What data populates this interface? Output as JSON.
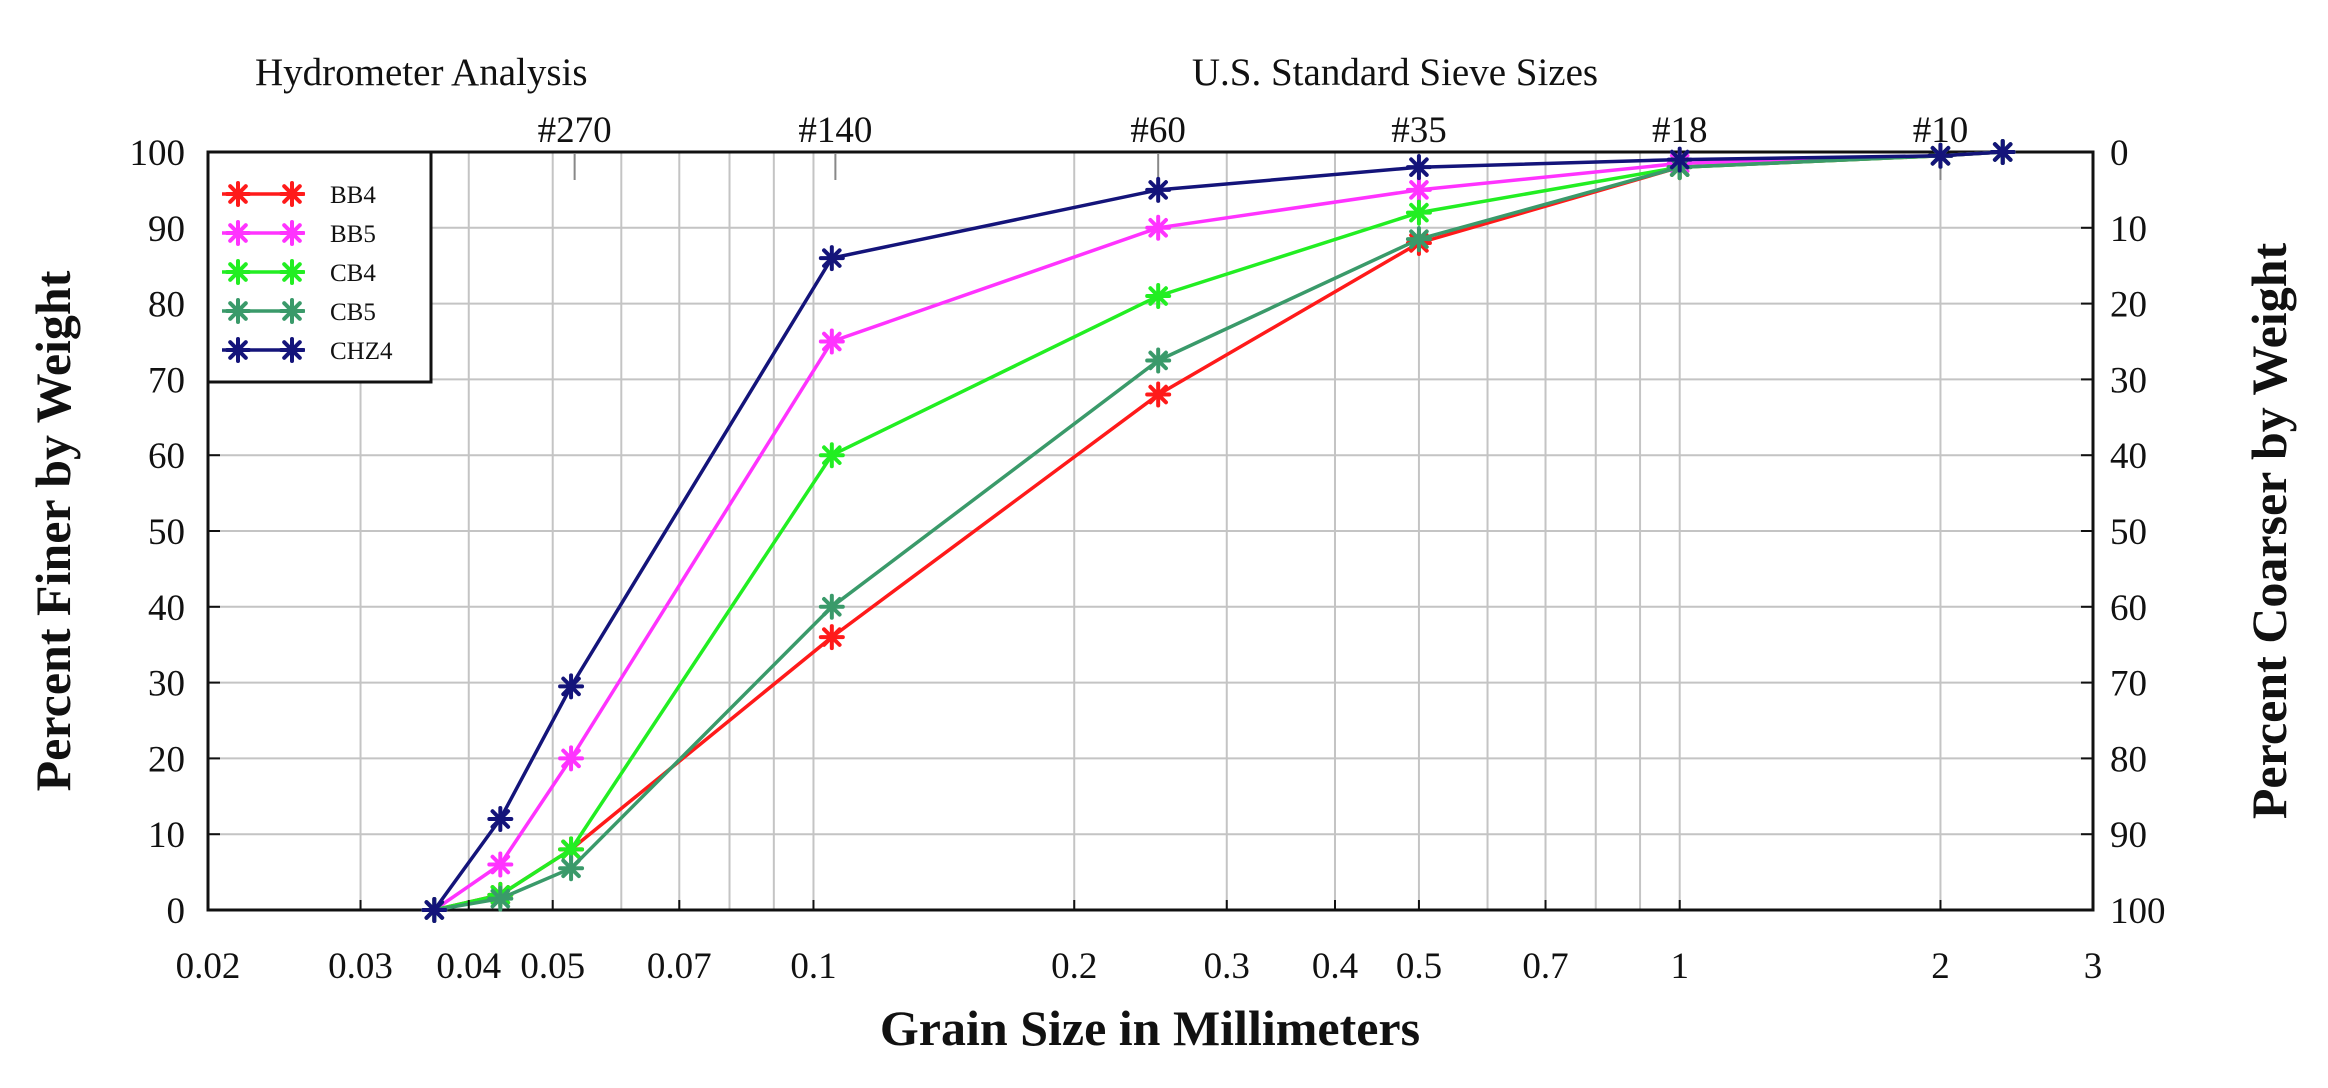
{
  "chart_data": {
    "type": "line",
    "x_scale": "log",
    "xlim": [
      0.02,
      3
    ],
    "ylim": [
      0,
      100
    ],
    "xlabel": "Grain Size in Millimeters",
    "ylabel": "Percent Finer by Weight",
    "ylabel_right": "Percent Coarser by Weight",
    "top_left_label": "Hydrometer Analysis",
    "top_right_label": "U.S. Standard Sieve Sizes",
    "x_ticks": [
      {
        "value": 0.02,
        "label": "0.02"
      },
      {
        "value": 0.03,
        "label": "0.03"
      },
      {
        "value": 0.04,
        "label": "0.04"
      },
      {
        "value": 0.05,
        "label": "0.05"
      },
      {
        "value": 0.07,
        "label": "0.07"
      },
      {
        "value": 0.1,
        "label": "0.1"
      },
      {
        "value": 0.2,
        "label": "0.2"
      },
      {
        "value": 0.3,
        "label": "0.3"
      },
      {
        "value": 0.4,
        "label": "0.4"
      },
      {
        "value": 0.5,
        "label": "0.5"
      },
      {
        "value": 0.7,
        "label": "0.7"
      },
      {
        "value": 1,
        "label": "1"
      },
      {
        "value": 2,
        "label": "2"
      },
      {
        "value": 3,
        "label": "3"
      }
    ],
    "y_ticks_left": [
      "0",
      "10",
      "20",
      "30",
      "40",
      "50",
      "60",
      "70",
      "80",
      "90",
      "100"
    ],
    "y_ticks_right": [
      "100",
      "90",
      "80",
      "70",
      "60",
      "50",
      "40",
      "30",
      "20",
      "10",
      "0"
    ],
    "sieve_marks": [
      {
        "label": "#270",
        "value": 0.053
      },
      {
        "label": "#140",
        "value": 0.106
      },
      {
        "label": "#60",
        "value": 0.25
      },
      {
        "label": "#35",
        "value": 0.5
      },
      {
        "label": "#18",
        "value": 1.0
      },
      {
        "label": "#10",
        "value": 2.0
      }
    ],
    "series": [
      {
        "name": "BB4",
        "color": "#ff1a1a",
        "x": [
          0.0365,
          0.0435,
          0.0525,
          0.105,
          0.25,
          0.5,
          1.0,
          2.0,
          2.36
        ],
        "y": [
          0,
          2,
          8,
          36,
          68,
          88,
          98,
          99.5,
          100
        ]
      },
      {
        "name": "BB5",
        "color": "#ff33ff",
        "x": [
          0.0365,
          0.0435,
          0.0525,
          0.105,
          0.25,
          0.5,
          1.0,
          2.0,
          2.36
        ],
        "y": [
          0,
          6,
          20,
          75,
          90,
          95,
          98.5,
          99.5,
          100
        ]
      },
      {
        "name": "CB4",
        "color": "#22ee22",
        "x": [
          0.0365,
          0.0435,
          0.0525,
          0.105,
          0.25,
          0.5,
          1.0,
          2.0,
          2.36
        ],
        "y": [
          0,
          2,
          8,
          60,
          81,
          92,
          98,
          99.5,
          100
        ]
      },
      {
        "name": "CB5",
        "color": "#3a9a6a",
        "x": [
          0.0365,
          0.0435,
          0.0525,
          0.105,
          0.25,
          0.5,
          1.0,
          2.0,
          2.36
        ],
        "y": [
          0,
          1.5,
          5.5,
          40,
          72.5,
          88.5,
          98,
          99.5,
          100
        ]
      },
      {
        "name": "CHZ4",
        "color": "#14147a",
        "x": [
          0.0365,
          0.0435,
          0.0525,
          0.105,
          0.25,
          0.5,
          1.0,
          2.0,
          2.36
        ],
        "y": [
          0,
          12,
          29.5,
          86,
          95,
          98,
          99,
          99.5,
          100
        ]
      }
    ]
  }
}
